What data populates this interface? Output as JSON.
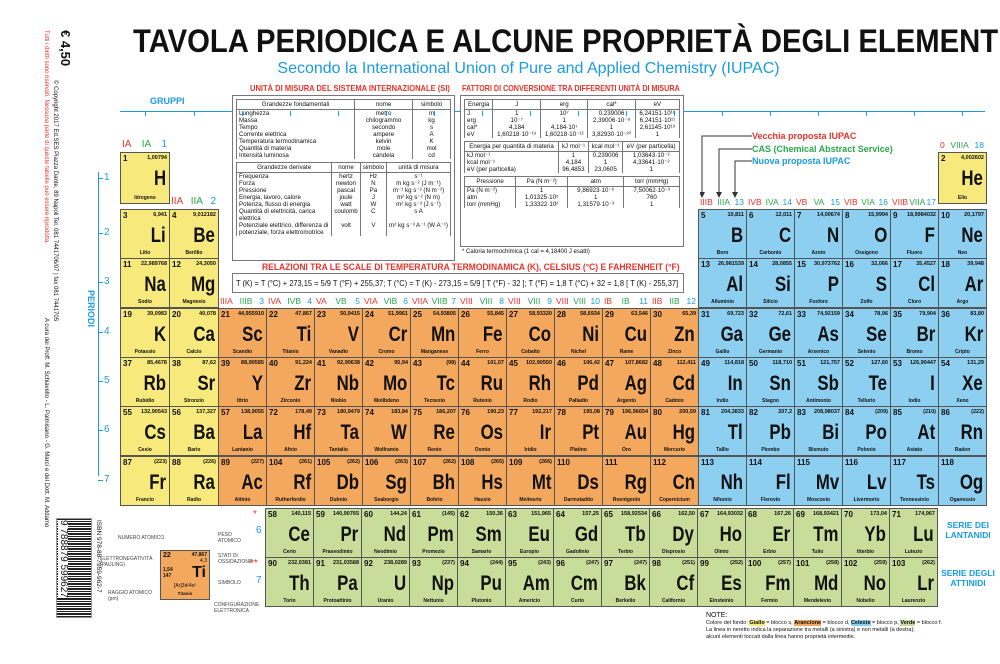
{
  "header": {
    "title": "TAVOLA PERIODICA E ALCUNE PROPRIETÀ DEGLI ELEMENTI",
    "subtitle": "Secondo la International Union of Pure and Applied Chemistry (IUPAC)"
  },
  "side": {
    "price": "€ 4,50",
    "copyright": "© Copyright 2017 Ed.SES Piazza Dante, 89 Napoli Tel. 081 7441706/07 | fax 081 7441705",
    "rights": "Tutti i diritti sono riservati. Nessuna parte di queste tabelle può essere riprodotta.",
    "authors": "A cura dei Proff. M. Schiavello - L. Palmisano - G. Marcì e del Dott. M. Addamo",
    "isbn": "ISBN 978-88-7959-962-7",
    "barcode": "9 788879 599627"
  },
  "labels": {
    "gruppi": "GRUPPI",
    "periodi": "PERIODI",
    "periods": [
      "1",
      "2",
      "3",
      "4",
      "5",
      "6",
      "7"
    ],
    "lant": "SERIE DEI LANTANIDI",
    "att": "SERIE DEGLI ATTINIDI",
    "star1": "*",
    "star2": "**",
    "f6": "6",
    "f7": "7"
  },
  "iupac_legend": {
    "old": "Vecchia proposta IUPAC",
    "cas": "CAS (Chemical Abstract Service)",
    "new": "Nuova proposta IUPAC"
  },
  "groups": [
    [
      "IA",
      "IA",
      "1"
    ],
    [
      "IIA",
      "IIA",
      "2"
    ],
    [
      "IIIA",
      "IIIB",
      "3"
    ],
    [
      "IVA",
      "IVB",
      "4"
    ],
    [
      "VA",
      "VB",
      "5"
    ],
    [
      "VIA",
      "VIB",
      "6"
    ],
    [
      "VIIA",
      "VIIB",
      "7"
    ],
    [
      "VIII",
      "VIII",
      "8"
    ],
    [
      "VIII",
      "VIII",
      "9"
    ],
    [
      "VIII",
      "VIII",
      "10"
    ],
    [
      "IB",
      "IB",
      "11"
    ],
    [
      "IIB",
      "IIB",
      "12"
    ],
    [
      "IIIB",
      "IIIA",
      "13"
    ],
    [
      "IVB",
      "IVA",
      "14"
    ],
    [
      "VB",
      "VA",
      "15"
    ],
    [
      "VIB",
      "VIA",
      "16"
    ],
    [
      "VIIB",
      "VIIA",
      "17"
    ],
    [
      "0",
      "VIIIA",
      "18"
    ]
  ],
  "si": {
    "title": "UNITÀ DI MISURA DEL SISTEMA INTERNAZIONALE (SI)",
    "fund_head": [
      "Grandezze fondamentali",
      "nome",
      "simbolo"
    ],
    "fund": [
      [
        "Lunghezza",
        "metro",
        "m"
      ],
      [
        "Massa",
        "chilogrammo",
        "kg"
      ],
      [
        "Tempo",
        "secondo",
        "s"
      ],
      [
        "Corrente elettrica",
        "ampere",
        "A"
      ],
      [
        "Temperatura termodinamica",
        "kelvin",
        "K"
      ],
      [
        "Quantità di materia",
        "mole",
        "mol"
      ],
      [
        "Intensità luminosa",
        "candela",
        "cd"
      ]
    ],
    "der_head": [
      "Grandezze derivate",
      "nome",
      "simbolo",
      "unità di misura"
    ],
    "der": [
      [
        "Frequenza",
        "hertz",
        "Hz",
        "s⁻¹"
      ],
      [
        "Forza",
        "newton",
        "N",
        "m kg s⁻² (J m⁻¹)"
      ],
      [
        "Pressione",
        "pascal",
        "Pa",
        "m⁻¹ kg s⁻² (N m⁻²)"
      ],
      [
        "Energia, lavoro, calore",
        "joule",
        "J",
        "m² kg s⁻² (N m)"
      ],
      [
        "Potenza, flusso di energia",
        "watt",
        "W",
        "m² kg s⁻³ (J s⁻¹)"
      ],
      [
        "Quantità di elettricità, carica elettrica",
        "coulomb",
        "C",
        "s A"
      ],
      [
        "Potenziale elettrico, differenza di potenziale, forza elettromotrice",
        "volt",
        "V",
        "m² kg s⁻³ A⁻¹ (W A⁻¹)"
      ]
    ]
  },
  "conv": {
    "title": "FATTORI DI CONVERSIONE TRA DIFFERENTI UNITÀ DI MISURA",
    "energy_head": [
      "Energia",
      "J",
      "erg",
      "cal*",
      "eV"
    ],
    "energy": [
      [
        "J",
        "1",
        "10⁷",
        "0,239006",
        "6,24151·10¹⁸"
      ],
      [
        "erg",
        "10⁻⁷",
        "1",
        "2,39006·10⁻⁸",
        "6,24151·10¹¹"
      ],
      [
        "cal*",
        "4,184",
        "4,184·10⁷",
        "1",
        "2,61145·10¹⁹"
      ],
      [
        "eV",
        "1,60218·10⁻¹⁹",
        "1,60218·10⁻¹²",
        "3,82930·10⁻²⁰",
        "1"
      ]
    ],
    "mol_head": [
      "Energia per quantità di materia",
      "kJ mol⁻¹",
      "kcal mol⁻¹",
      "eV (per particella)"
    ],
    "mol": [
      [
        "kJ mol⁻¹",
        "1",
        "0,239006",
        "1,03643·10⁻²"
      ],
      [
        "kcal mol⁻¹",
        "4,184",
        "1",
        "4,33641·10⁻²"
      ],
      [
        "eV (per particella)",
        "96,4853",
        "23,0605",
        "1"
      ]
    ],
    "p_head": [
      "Pressione",
      "Pa (N m⁻²)",
      "atm",
      "torr (mmHg)"
    ],
    "p": [
      [
        "Pa (N m⁻²)",
        "1",
        "9,86923·10⁻⁶",
        "7,50062·10⁻³"
      ],
      [
        "atm",
        "1,01325·10⁵",
        "1",
        "760"
      ],
      [
        "torr (mmHg)",
        "1,33322·10²",
        "1,31579·10⁻³",
        "1"
      ]
    ],
    "note": "* Caloria termochimica (1 cal = 4,18400 J esatti)"
  },
  "temp": {
    "title": "RELAZIONI TRA LE SCALE DI TEMPERATURA TERMODINAMICA (K), CELSIUS (°C) E FAHRENHEIT (°F)",
    "formula": "T (K) = T (°C) + 273,15 = 5/9 T (°F) + 255,37;   T (°C) = T (K) - 273,15 = 5/9 [ T (°F) - 32 ];   T (°F) = 1,8 T (°C) + 32 = 1,8 [ T (K) - 255,37]"
  },
  "key": {
    "numero": "NUMERO ATOMICO",
    "peso": "PESO ATOMICO",
    "en": "ELETTRONEGATIVITÀ (PAULING)",
    "stati": "STATI DI OSSIDAZIONE",
    "raggio": "RAGGIO ATOMICO (pm)",
    "simbolo": "SIMBOLO",
    "config": "CONFIGURAZIONE ELETTRONICA",
    "ex_n": "22",
    "ex_m": "47,867",
    "ex_ox": "4,3",
    "ex_en": "1,54",
    "ex_r": "147",
    "ex_s": "Ti",
    "ex_cfg": "[Ar]3d²4s²",
    "ex_name": "Titanio"
  },
  "notes": {
    "title": "NOTE:",
    "line1_a": "Colore del fondo: ",
    "giallo": "Giallo",
    "line1_b": " = blocco s, ",
    "arancione": "Arancione",
    "line1_c": " = blocco d, ",
    "celeste": "Celeste",
    "line1_d": " = blocco p, ",
    "verde": "Verde",
    "line1_e": " = blocco f.",
    "line2": "La linea in neretto indica la separazione tra metalli (a sinistra) e non metalli (a destra);",
    "line3": "alcuni elementi toccati dalla linea hanno proprietà intermedie."
  },
  "colors": {
    "s": "#f7e97c",
    "d": "#f4a85e",
    "p": "#8ccff0",
    "f": "#c8dd9a",
    "accent_blue": "#1a9be0",
    "accent_red": "#e8322b",
    "accent_green": "#2aa84a"
  },
  "elements": [
    [
      1,
      "H",
      "1,00794",
      "Idrogeno",
      "s"
    ],
    [
      2,
      "He",
      "4,002602",
      "Elio",
      "s"
    ],
    [
      3,
      "Li",
      "6,941",
      "Litio",
      "s"
    ],
    [
      4,
      "Be",
      "9,012182",
      "Berillio",
      "s"
    ],
    [
      5,
      "B",
      "10,811",
      "Boro",
      "p"
    ],
    [
      6,
      "C",
      "12,011",
      "Carbonio",
      "p"
    ],
    [
      7,
      "N",
      "14,00674",
      "Azoto",
      "p"
    ],
    [
      8,
      "O",
      "15,9994",
      "Ossigeno",
      "p"
    ],
    [
      9,
      "F",
      "18,9984032",
      "Fluoro",
      "p"
    ],
    [
      10,
      "Ne",
      "20,1797",
      "Neo",
      "p"
    ],
    [
      11,
      "Na",
      "22,989768",
      "Sodio",
      "s"
    ],
    [
      12,
      "Mg",
      "24,3050",
      "Magnesio",
      "s"
    ],
    [
      13,
      "Al",
      "26,981539",
      "Alluminio",
      "p"
    ],
    [
      14,
      "Si",
      "28,0855",
      "Silicio",
      "p"
    ],
    [
      15,
      "P",
      "30,973762",
      "Fosforo",
      "p"
    ],
    [
      16,
      "S",
      "32,066",
      "Zolfo",
      "p"
    ],
    [
      17,
      "Cl",
      "35,4527",
      "Cloro",
      "p"
    ],
    [
      18,
      "Ar",
      "39,948",
      "Argo",
      "p"
    ],
    [
      19,
      "K",
      "39,0983",
      "Potassio",
      "s"
    ],
    [
      20,
      "Ca",
      "40,078",
      "Calcio",
      "s"
    ],
    [
      21,
      "Sc",
      "44,955910",
      "Scandio",
      "d"
    ],
    [
      22,
      "Ti",
      "47,867",
      "Titanio",
      "d"
    ],
    [
      23,
      "V",
      "50,9415",
      "Vanadio",
      "d"
    ],
    [
      24,
      "Cr",
      "51,9961",
      "Cromo",
      "d"
    ],
    [
      25,
      "Mn",
      "54,93805",
      "Manganese",
      "d"
    ],
    [
      26,
      "Fe",
      "55,845",
      "Ferro",
      "d"
    ],
    [
      27,
      "Co",
      "58,93320",
      "Cobalto",
      "d"
    ],
    [
      28,
      "Ni",
      "58,6934",
      "Nichel",
      "d"
    ],
    [
      29,
      "Cu",
      "63,546",
      "Rame",
      "d"
    ],
    [
      30,
      "Zn",
      "65,39",
      "Zinco",
      "d"
    ],
    [
      31,
      "Ga",
      "69,723",
      "Gallio",
      "p"
    ],
    [
      32,
      "Ge",
      "72,61",
      "Germanio",
      "p"
    ],
    [
      33,
      "As",
      "74,92159",
      "Arsenico",
      "p"
    ],
    [
      34,
      "Se",
      "78,96",
      "Selenio",
      "p"
    ],
    [
      35,
      "Br",
      "79,904",
      "Bromo",
      "p"
    ],
    [
      36,
      "Kr",
      "83,80",
      "Cripto",
      "p"
    ],
    [
      37,
      "Rb",
      "85,4678",
      "Rubidio",
      "s"
    ],
    [
      38,
      "Sr",
      "87,62",
      "Stronzio",
      "s"
    ],
    [
      39,
      "Y",
      "88,90585",
      "Ittrio",
      "d"
    ],
    [
      40,
      "Zr",
      "91,224",
      "Zirconio",
      "d"
    ],
    [
      41,
      "Nb",
      "92,90638",
      "Niobio",
      "d"
    ],
    [
      42,
      "Mo",
      "95,94",
      "Molibdeno",
      "d"
    ],
    [
      43,
      "Tc",
      "(98)",
      "Tecnezio",
      "d"
    ],
    [
      44,
      "Ru",
      "101,07",
      "Rutenio",
      "d"
    ],
    [
      45,
      "Rh",
      "102,90550",
      "Rodio",
      "d"
    ],
    [
      46,
      "Pd",
      "106,42",
      "Palladio",
      "d"
    ],
    [
      47,
      "Ag",
      "107,8682",
      "Argento",
      "d"
    ],
    [
      48,
      "Cd",
      "112,411",
      "Cadmio",
      "d"
    ],
    [
      49,
      "In",
      "114,818",
      "Indio",
      "p"
    ],
    [
      50,
      "Sn",
      "118,710",
      "Stagno",
      "p"
    ],
    [
      51,
      "Sb",
      "121,757",
      "Antimonio",
      "p"
    ],
    [
      52,
      "Te",
      "127,60",
      "Tellurio",
      "p"
    ],
    [
      53,
      "I",
      "126,90447",
      "Iodio",
      "p"
    ],
    [
      54,
      "Xe",
      "131,29",
      "Xeno",
      "p"
    ],
    [
      55,
      "Cs",
      "132,90543",
      "Cesio",
      "s"
    ],
    [
      56,
      "Ba",
      "137,327",
      "Bario",
      "s"
    ],
    [
      57,
      "La",
      "138,9055",
      "Lantanio",
      "d"
    ],
    [
      72,
      "Hf",
      "178,49",
      "Afnio",
      "d"
    ],
    [
      73,
      "Ta",
      "180,9479",
      "Tantalio",
      "d"
    ],
    [
      74,
      "W",
      "183,84",
      "Wolframio",
      "d"
    ],
    [
      75,
      "Re",
      "186,207",
      "Renio",
      "d"
    ],
    [
      76,
      "Os",
      "190,23",
      "Osmio",
      "d"
    ],
    [
      77,
      "Ir",
      "192,217",
      "Iridio",
      "d"
    ],
    [
      78,
      "Pt",
      "195,08",
      "Platino",
      "d"
    ],
    [
      79,
      "Au",
      "196,96654",
      "Oro",
      "d"
    ],
    [
      80,
      "Hg",
      "200,59",
      "Mercurio",
      "d"
    ],
    [
      81,
      "Tl",
      "204,3833",
      "Tallio",
      "p"
    ],
    [
      82,
      "Pb",
      "207,2",
      "Piombo",
      "p"
    ],
    [
      83,
      "Bi",
      "208,98037",
      "Bismuto",
      "p"
    ],
    [
      84,
      "Po",
      "(209)",
      "Polonio",
      "p"
    ],
    [
      85,
      "At",
      "(210)",
      "Astato",
      "p"
    ],
    [
      86,
      "Rn",
      "(222)",
      "Radon",
      "p"
    ],
    [
      87,
      "Fr",
      "(223)",
      "Francio",
      "s"
    ],
    [
      88,
      "Ra",
      "(226)",
      "Radio",
      "s"
    ],
    [
      89,
      "Ac",
      "(227)",
      "Attinio",
      "d"
    ],
    [
      104,
      "Rf",
      "(261)",
      "Rutherfordio",
      "d"
    ],
    [
      105,
      "Db",
      "(262)",
      "Dubnio",
      "d"
    ],
    [
      106,
      "Sg",
      "(263)",
      "Seaborgio",
      "d"
    ],
    [
      107,
      "Bh",
      "(262)",
      "Bohrio",
      "d"
    ],
    [
      108,
      "Hs",
      "(265)",
      "Hassio",
      "d"
    ],
    [
      109,
      "Mt",
      "(266)",
      "Meitnerio",
      "d"
    ],
    [
      110,
      "Ds",
      "",
      "Darmstadtio",
      "d"
    ],
    [
      111,
      "Rg",
      "",
      "Roentgenio",
      "d"
    ],
    [
      112,
      "Cn",
      "",
      "Copernicium",
      "d"
    ],
    [
      113,
      "Nh",
      "",
      "Nihonio",
      "p"
    ],
    [
      114,
      "Fl",
      "",
      "Flerovio",
      "p"
    ],
    [
      115,
      "Mv",
      "",
      "Moscovio",
      "p"
    ],
    [
      116,
      "Lv",
      "",
      "Livermorio",
      "p"
    ],
    [
      117,
      "Ts",
      "",
      "Tennessinio",
      "p"
    ],
    [
      118,
      "Og",
      "",
      "Oganessio",
      "p"
    ],
    [
      58,
      "Ce",
      "140,115",
      "Cerio",
      "f"
    ],
    [
      59,
      "Pr",
      "140,90765",
      "Praseodimio",
      "f"
    ],
    [
      60,
      "Nd",
      "144,24",
      "Neodimio",
      "f"
    ],
    [
      61,
      "Pm",
      "(145)",
      "Promezio",
      "f"
    ],
    [
      62,
      "Sm",
      "150,36",
      "Samario",
      "f"
    ],
    [
      63,
      "Eu",
      "151,965",
      "Europio",
      "f"
    ],
    [
      64,
      "Gd",
      "157,25",
      "Gadolinio",
      "f"
    ],
    [
      65,
      "Tb",
      "158,92534",
      "Terbio",
      "f"
    ],
    [
      66,
      "Dy",
      "162,50",
      "Disprosio",
      "f"
    ],
    [
      67,
      "Ho",
      "164,93032",
      "Olmio",
      "f"
    ],
    [
      68,
      "Er",
      "167,26",
      "Erbio",
      "f"
    ],
    [
      69,
      "Tm",
      "168,93421",
      "Tulio",
      "f"
    ],
    [
      70,
      "Yb",
      "173,04",
      "Itterbio",
      "f"
    ],
    [
      71,
      "Lu",
      "174,967",
      "Lutezio",
      "f"
    ],
    [
      90,
      "Th",
      "232,0381",
      "Torio",
      "f"
    ],
    [
      91,
      "Pa",
      "231,03588",
      "Protoattinio",
      "f"
    ],
    [
      92,
      "U",
      "238,0289",
      "Uranio",
      "f"
    ],
    [
      93,
      "Np",
      "(237)",
      "Nettunio",
      "f"
    ],
    [
      94,
      "Pu",
      "(244)",
      "Plutonio",
      "f"
    ],
    [
      95,
      "Am",
      "(243)",
      "Americio",
      "f"
    ],
    [
      96,
      "Cm",
      "(247)",
      "Curio",
      "f"
    ],
    [
      97,
      "Bk",
      "(247)",
      "Berkelio",
      "f"
    ],
    [
      98,
      "Cf",
      "(251)",
      "Californio",
      "f"
    ],
    [
      99,
      "Es",
      "(252)",
      "Einsteinio",
      "f"
    ],
    [
      100,
      "Fm",
      "(257)",
      "Fermio",
      "f"
    ],
    [
      101,
      "Md",
      "(258)",
      "Mendelevio",
      "f"
    ],
    [
      102,
      "No",
      "(259)",
      "Nobelio",
      "f"
    ],
    [
      103,
      "Lr",
      "(262)",
      "Laurenzio",
      "f"
    ]
  ]
}
